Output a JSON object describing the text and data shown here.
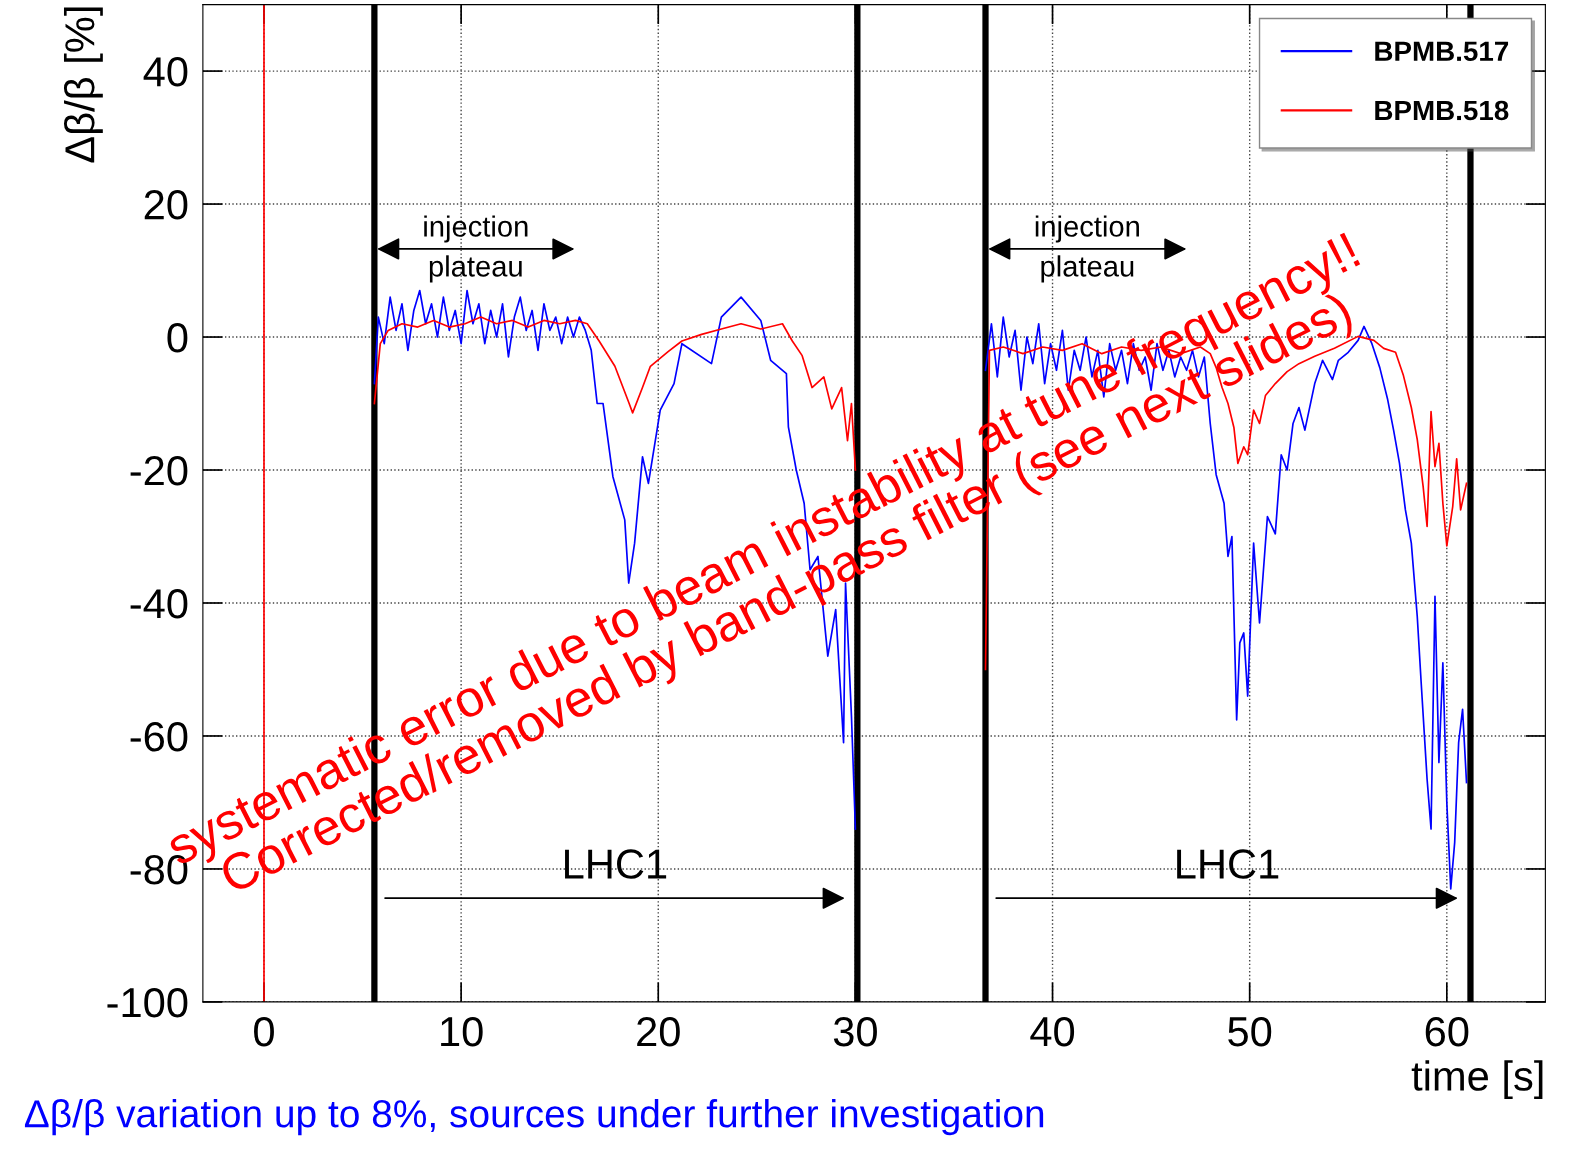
{
  "chart_data": {
    "type": "line",
    "xlabel": "time [s]",
    "ylabel": "Δβ/β [%]",
    "xlim": [
      -3.1,
      65
    ],
    "ylim": [
      -100,
      50
    ],
    "xticks": [
      0,
      10,
      20,
      30,
      40,
      50,
      60
    ],
    "yticks": [
      -100,
      -80,
      -60,
      -40,
      -20,
      0,
      20,
      40
    ],
    "grid": true,
    "legend": "top right",
    "series": [
      {
        "name": "BPMB.517",
        "color": "#0000ff",
        "x": [
          5.6,
          5.8,
          6.1,
          6.4,
          6.7,
          7.0,
          7.3,
          7.6,
          7.9,
          8.2,
          8.5,
          8.8,
          9.1,
          9.4,
          9.7,
          10.0,
          10.3,
          10.6,
          10.9,
          11.2,
          11.5,
          11.8,
          12.1,
          12.4,
          12.7,
          13.0,
          13.3,
          13.6,
          13.9,
          14.2,
          14.5,
          14.8,
          15.1,
          15.4,
          15.7,
          16.0,
          16.3,
          16.6,
          16.9,
          17.2,
          17.7,
          18.3,
          18.5,
          18.8,
          19.2,
          19.5,
          20.1,
          20.8,
          21.2,
          22.7,
          23.2,
          24.2,
          25.2,
          25.7,
          26.5,
          26.6,
          27.0,
          27.4,
          27.7,
          28.1,
          28.6,
          29.0,
          29.4,
          29.5,
          29.8,
          30.0,
          33.0,
          36.6,
          36.9,
          37.2,
          37.5,
          37.8,
          38.1,
          38.4,
          38.7,
          39.0,
          39.3,
          39.6,
          39.9,
          40.2,
          40.5,
          40.8,
          41.1,
          41.4,
          41.7,
          42.0,
          42.3,
          42.6,
          42.9,
          43.2,
          43.5,
          43.8,
          44.1,
          44.4,
          44.7,
          45.0,
          45.3,
          45.6,
          45.9,
          46.2,
          46.5,
          46.8,
          47.1,
          47.4,
          47.7,
          48.0,
          48.3,
          48.7,
          48.9,
          49.1,
          49.34,
          49.5,
          49.7,
          49.9,
          50.2,
          50.5,
          50.9,
          51.3,
          51.6,
          51.9,
          52.2,
          52.5,
          52.8,
          53.3,
          53.7,
          54.2,
          54.5,
          55.0,
          55.5,
          55.8,
          56.2,
          56.6,
          57.0,
          57.3,
          57.6,
          57.9,
          58.2,
          58.5,
          58.7,
          59.0,
          59.2,
          59.4,
          59.6,
          59.8,
          60.0,
          60.2,
          60.4,
          60.6,
          60.8,
          61.0
        ],
        "values": [
          -7,
          3,
          -1,
          6,
          1,
          5,
          -2,
          4,
          7,
          2,
          5,
          0,
          6,
          1,
          4,
          -1,
          7,
          2,
          5,
          -1,
          4,
          0,
          5,
          -3,
          3,
          6,
          1,
          4,
          -2,
          5,
          1,
          3,
          -1,
          3,
          0,
          3,
          1,
          -2,
          -10,
          -10,
          -21,
          -27.5,
          -37,
          -31,
          -18,
          -22,
          -11,
          -7,
          -1,
          -4,
          3,
          6,
          2.5,
          -3.5,
          -5.5,
          -13.5,
          -20,
          -25,
          -35,
          -33,
          -48,
          -41,
          -61,
          -37,
          -57,
          -74,
          null,
          -5,
          2,
          -6,
          3,
          -3,
          1,
          -8,
          0,
          -4,
          2,
          -7,
          -1,
          -5,
          1,
          -8,
          -2,
          -5,
          0,
          -6,
          -2,
          -9,
          -1,
          -5,
          -2,
          -7,
          -1,
          -5,
          -3,
          -8,
          -1,
          -5,
          -2,
          -6,
          -3,
          -5,
          -2,
          -6,
          -3,
          -13,
          -20.7,
          -25,
          -33,
          -30,
          -57.6,
          -46,
          -44.5,
          -54,
          -31,
          -43,
          -27,
          -29.6,
          -17.7,
          -20,
          -13,
          -10.6,
          -14,
          -7,
          -3.5,
          -6.4,
          -3.5,
          -2.3,
          -0.5,
          1.6,
          -1,
          -4.6,
          -9.4,
          -14,
          -19,
          -26,
          -31,
          -42,
          -52,
          -66.5,
          -74,
          -39,
          -64,
          -49,
          -70,
          -83,
          -76,
          -61,
          -56,
          -67
        ]
      },
      {
        "name": "BPMB.518",
        "color": "#ff0000",
        "x": [
          5.6,
          5.9,
          6.3,
          7.0,
          7.8,
          8.6,
          9.4,
          10.2,
          11.0,
          11.8,
          12.6,
          13.4,
          14.2,
          15.0,
          15.8,
          16.4,
          17.0,
          17.8,
          18.5,
          18.7,
          19.2,
          19.6,
          20.5,
          21.2,
          22.2,
          23.2,
          24.2,
          25.2,
          26.3,
          26.8,
          27.3,
          27.8,
          28.4,
          28.8,
          29.3,
          29.6,
          29.8,
          30.0,
          33.0,
          36.6,
          36.8,
          37.5,
          38.5,
          39.5,
          40.5,
          41.5,
          42.5,
          43.5,
          44.5,
          45.5,
          46.5,
          47.5,
          48.0,
          48.3,
          48.6,
          48.9,
          49.2,
          49.4,
          49.7,
          49.9,
          50.2,
          50.5,
          50.8,
          51.3,
          51.9,
          52.5,
          53.3,
          54.3,
          55.5,
          56.3,
          56.8,
          57.4,
          57.8,
          58.2,
          58.5,
          58.8,
          59.0,
          59.2,
          59.4,
          59.6,
          59.8,
          60.0,
          60.3,
          60.5,
          60.7,
          61.0
        ],
        "values": [
          -10,
          -1,
          1,
          2,
          1.5,
          2.5,
          1.5,
          2,
          3,
          2,
          2.5,
          1.5,
          2.5,
          2,
          2.5,
          2,
          -0.6,
          -4.4,
          -9.8,
          -11.4,
          -7.6,
          -4.4,
          -2.2,
          -0.6,
          0.4,
          1.2,
          2,
          1.2,
          2,
          -0.6,
          -2.8,
          -7.6,
          -6,
          -10.8,
          -7.6,
          -15.6,
          -10,
          -20,
          null,
          -50,
          -2,
          -1.5,
          -2.5,
          -1.5,
          -2,
          -1,
          -2.5,
          -1.5,
          -2,
          -1.5,
          -2.5,
          -1.5,
          -2.5,
          -4.6,
          -7.6,
          -10,
          -13.6,
          -19,
          -16.5,
          -17.7,
          -11,
          -13,
          -8.8,
          -7,
          -5.2,
          -4,
          -2.9,
          -1.7,
          0.1,
          -0.5,
          -1.7,
          -2.3,
          -5.8,
          -10.6,
          -15.4,
          -22.5,
          -28.5,
          -11.2,
          -19.5,
          -16,
          -25,
          -31.4,
          -25.5,
          -18.3,
          -26,
          -22
        ]
      }
    ],
    "ref_lines": [
      {
        "axis": "x",
        "value": 0,
        "color": "#ff0000"
      },
      {
        "axis": "x",
        "value": 5.6,
        "color": "#000000"
      },
      {
        "axis": "x",
        "value": 30.1,
        "color": "#000000"
      },
      {
        "axis": "x",
        "value": 36.6,
        "color": "#000000"
      },
      {
        "axis": "x",
        "value": 61.2,
        "color": "#000000"
      }
    ],
    "annotations": [
      "injection\nplateau",
      "injection\nplateau",
      "LHC1",
      "LHC1",
      "systematic error due to beam instability at tune frequency!!\nCorrected/removed by band-pass filter (see next slides)",
      "Δβ/β variation up to 8%, sources under further investigation"
    ]
  }
}
